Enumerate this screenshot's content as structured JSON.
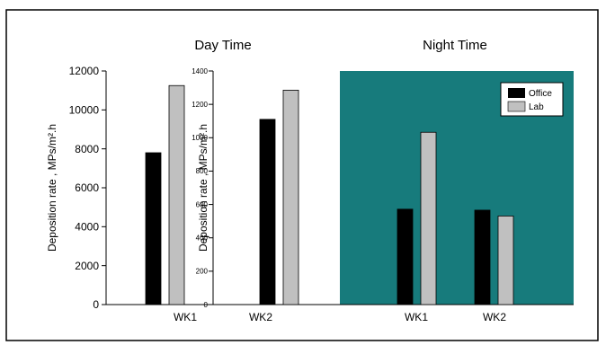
{
  "chart_data": {
    "type": "bar",
    "colors": {
      "office": "#000000",
      "lab": "#c0c0c0",
      "night_bg": "#177b7c",
      "frame": "#000000"
    },
    "legend": {
      "placement": "top-right",
      "entries": [
        "Office",
        "Lab"
      ]
    },
    "panels": [
      {
        "title": "Day Time",
        "ylabel_main": "Deposition rate , MPs/m².h",
        "ylim": [
          0,
          12000
        ],
        "yticks": [
          "0",
          "2000",
          "4000",
          "6000",
          "8000",
          "10000",
          "12000"
        ],
        "categories": [
          "WK1"
        ],
        "series": [
          {
            "name": "Office",
            "values": [
              7800
            ]
          },
          {
            "name": "Lab",
            "values": [
              11250
            ]
          }
        ]
      },
      {
        "title": "",
        "ylabel_main": "Deposition rate , MPs/m².h",
        "ylim": [
          0,
          1400
        ],
        "yticks": [
          "0",
          "200",
          "400",
          "600",
          "800",
          "1000",
          "1200",
          "1400"
        ],
        "categories": [
          "WK2"
        ],
        "series": [
          {
            "name": "Office",
            "values": [
              1110
            ]
          },
          {
            "name": "Lab",
            "values": [
              1285
            ]
          }
        ]
      },
      {
        "title": "Night Time",
        "ylabel_main": "",
        "ylim": [
          0,
          12000
        ],
        "yticks": [],
        "categories": [
          "WK1",
          "WK2"
        ],
        "series": [
          {
            "name": "Office",
            "values": [
              4900,
              4850
            ]
          },
          {
            "name": "Lab",
            "values": [
              8850,
              4550
            ]
          }
        ]
      }
    ]
  }
}
